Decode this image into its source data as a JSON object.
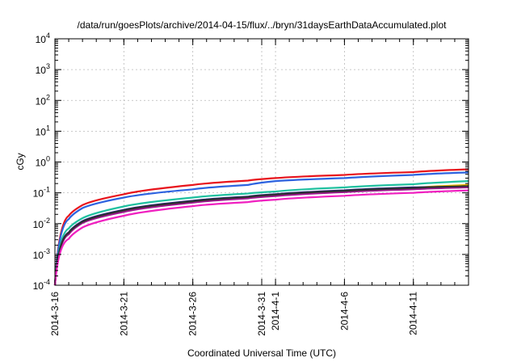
{
  "chart_data": {
    "type": "line",
    "title": "/data/run/goesPlots/archive/2014-04-15/flux/../bryn/31daysEarthDataAccumulated.plot",
    "xlabel": "Coordinated Universal Time (UTC)",
    "ylabel": "cGy",
    "y_scale": "log",
    "ylim": [
      0.0001,
      10000
    ],
    "xlim": [
      "2014-03-16",
      "2014-04-15"
    ],
    "grid": true,
    "x_ticks": [
      "2014-3-16",
      "2014-3-21",
      "2014-3-26",
      "2014-3-31",
      "2014-4-1",
      "2014-4-6",
      "2014-4-11"
    ],
    "y_ticks": [
      {
        "base": "10",
        "exp": "-4"
      },
      {
        "base": "10",
        "exp": "-3"
      },
      {
        "base": "10",
        "exp": "-2"
      },
      {
        "base": "10",
        "exp": "-1"
      },
      {
        "base": "10",
        "exp": "0"
      },
      {
        "base": "10",
        "exp": "1"
      },
      {
        "base": "10",
        "exp": "2"
      },
      {
        "base": "10",
        "exp": "3"
      },
      {
        "base": "10",
        "exp": "4"
      }
    ],
    "x": [
      "2014-03-16",
      "2014-03-17",
      "2014-03-18",
      "2014-03-21",
      "2014-03-26",
      "2014-03-30",
      "2014-04-01",
      "2014-04-06",
      "2014-04-11",
      "2014-04-15"
    ],
    "series": [
      {
        "color": "#e8141c",
        "values": [
          0.0001,
          0.018,
          0.04,
          0.09,
          0.18,
          0.25,
          0.3,
          0.38,
          0.47,
          0.58
        ]
      },
      {
        "color": "#2d63e0",
        "values": [
          0.0001,
          0.014,
          0.032,
          0.07,
          0.13,
          0.18,
          0.24,
          0.3,
          0.38,
          0.46
        ]
      },
      {
        "color": "#20c0a0",
        "values": [
          0.0001,
          0.007,
          0.015,
          0.036,
          0.07,
          0.095,
          0.11,
          0.15,
          0.19,
          0.24
        ]
      },
      {
        "color": "#e8b800",
        "values": [
          0.0001,
          0.0048,
          0.011,
          0.026,
          0.052,
          0.072,
          0.086,
          0.115,
          0.145,
          0.18
        ]
      },
      {
        "color": "#1a1a80",
        "values": [
          0.0001,
          0.0052,
          0.012,
          0.028,
          0.055,
          0.075,
          0.09,
          0.12,
          0.15,
          0.16
        ]
      },
      {
        "color": "#a01890",
        "values": [
          0.0001,
          0.0045,
          0.0105,
          0.024,
          0.048,
          0.066,
          0.078,
          0.105,
          0.13,
          0.15
        ]
      },
      {
        "color": "#303030",
        "values": [
          0.0001,
          0.005,
          0.0115,
          0.027,
          0.053,
          0.073,
          0.087,
          0.116,
          0.143,
          0.165
        ]
      },
      {
        "color": "#f020c0",
        "values": [
          0.0001,
          0.0032,
          0.0075,
          0.018,
          0.037,
          0.05,
          0.06,
          0.08,
          0.1,
          0.12
        ]
      }
    ]
  }
}
